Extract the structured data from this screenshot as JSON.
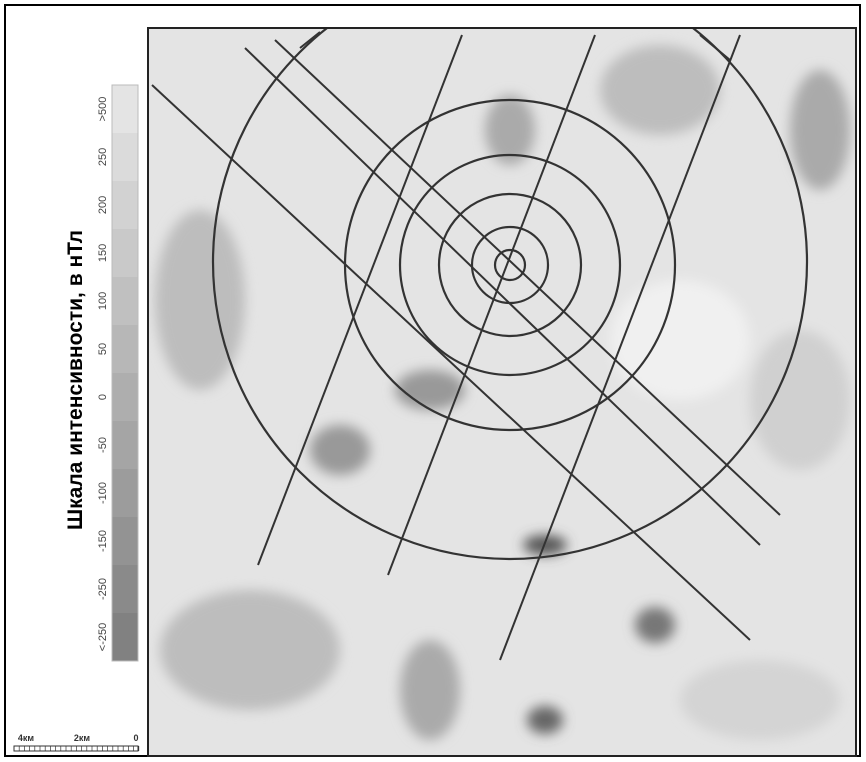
{
  "legend": {
    "title": "Шкала интенсивности, в нТл",
    "labels": [
      ">500",
      "250",
      "200",
      "150",
      "100",
      "50",
      "0",
      "-50",
      "-100",
      "-150",
      "-250",
      "<-250"
    ]
  },
  "scale_bar": {
    "labels": [
      "4км",
      "2км",
      "0"
    ]
  }
}
